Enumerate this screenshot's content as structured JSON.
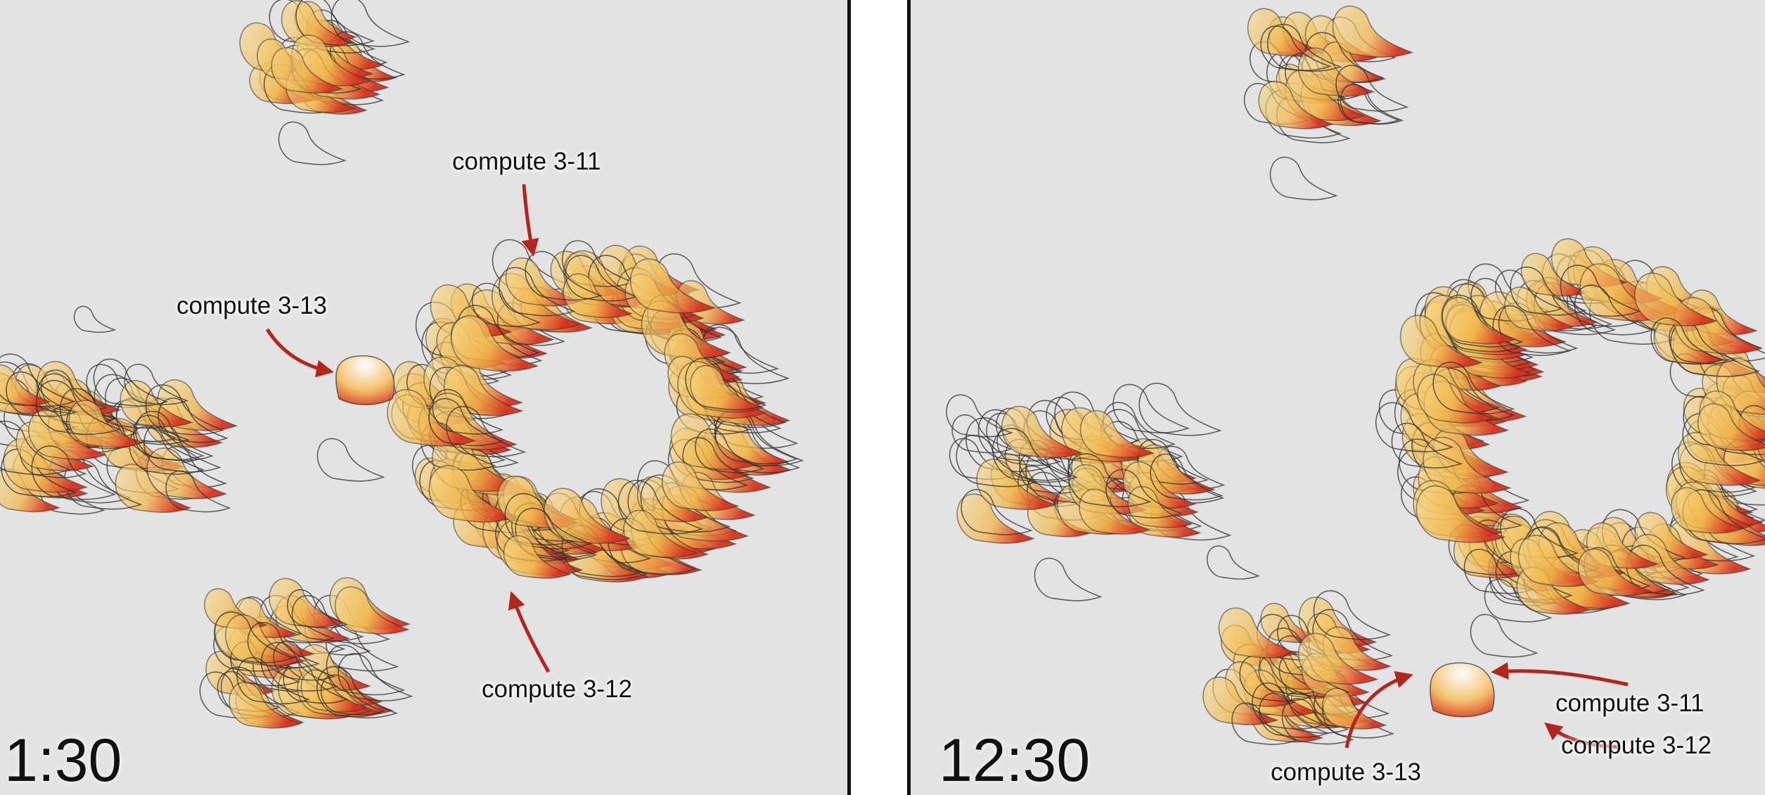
{
  "colors": {
    "background": "#e3e3e3",
    "divider": "#111111",
    "arrow": "#b3261e",
    "blob_fill": "#f0b64a",
    "blob_tip": "#d8321f",
    "outline": "#333333"
  },
  "panels": [
    {
      "time": "1:30",
      "labels": {
        "c11": "compute 3-11",
        "c13": "compute 3-13",
        "c12": "compute 3-12"
      }
    },
    {
      "time": "12:30",
      "labels": {
        "c11": "compute 3-11",
        "c12": "compute 3-12",
        "c13": "compute 3-13"
      }
    }
  ]
}
